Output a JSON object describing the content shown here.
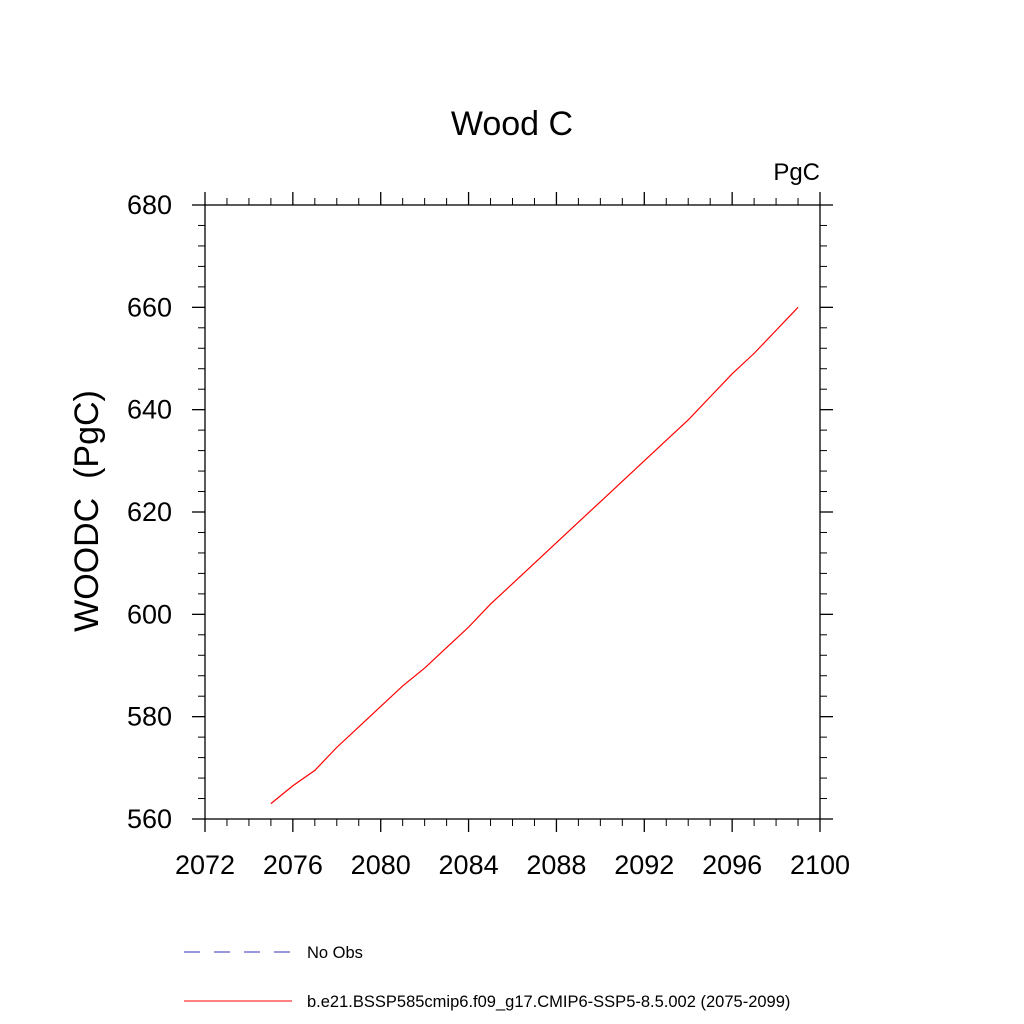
{
  "chart_data": {
    "type": "line",
    "title": "Wood C",
    "units_label": "PgC",
    "ylabel": "WOODC  (PgC)",
    "xlabel": "",
    "xlim": [
      2072,
      2100
    ],
    "ylim": [
      560,
      680
    ],
    "x_ticks": [
      2072,
      2076,
      2080,
      2084,
      2088,
      2092,
      2096,
      2100
    ],
    "y_ticks": [
      560,
      580,
      600,
      620,
      640,
      660,
      680
    ],
    "grid": false,
    "legend_placement": "bottom",
    "series": [
      {
        "name": "b.e21.BSSP585cmip6.f09_g17.CMIP6-SSP5-8.5.002 (2075-2099)",
        "color": "#ff0000",
        "dash": "solid",
        "x": [
          2075,
          2076,
          2077,
          2078,
          2079,
          2080,
          2081,
          2082,
          2083,
          2084,
          2085,
          2086,
          2087,
          2088,
          2089,
          2090,
          2091,
          2092,
          2093,
          2094,
          2095,
          2096,
          2097,
          2098,
          2099
        ],
        "y": [
          563,
          566.5,
          569.5,
          574,
          578,
          582,
          586,
          589.5,
          593.5,
          597.5,
          602,
          606,
          610,
          614,
          618,
          622,
          626,
          630,
          634,
          638,
          642.5,
          647,
          651,
          655.5,
          660
        ]
      }
    ],
    "legend": [
      {
        "label": "No Obs",
        "color": "#3232b4",
        "dash": "dashed"
      },
      {
        "label": "b.e21.BSSP585cmip6.f09_g17.CMIP6-SSP5-8.5.002 (2075-2099)",
        "color": "#ff0000",
        "dash": "solid"
      }
    ]
  }
}
